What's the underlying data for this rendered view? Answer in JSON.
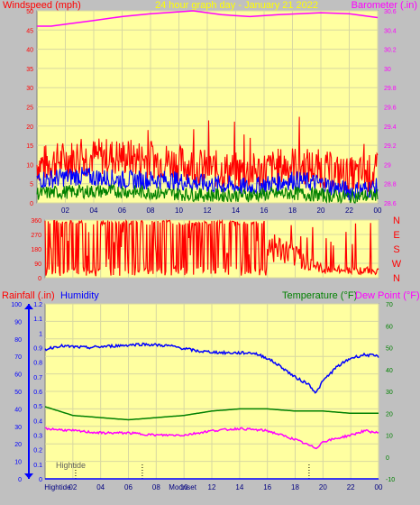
{
  "header": {
    "left_label": "Windspeed (mph)",
    "center_label": "24 hour graph day - January 21 2022",
    "right_label": "Barometer (.in)"
  },
  "colors": {
    "background": "#c0c0c0",
    "plot": "#ffffa0",
    "red": "#ff0000",
    "blue": "#0000ff",
    "green": "#008000",
    "magenta": "#ff00ff",
    "yellow": "#ffff00"
  },
  "chart_data": [
    {
      "type": "line",
      "panel": "wind-barometer",
      "x_ticks": [
        "02",
        "04",
        "06",
        "08",
        "10",
        "12",
        "14",
        "16",
        "18",
        "20",
        "22",
        "00"
      ],
      "y_left_ticks": [
        0,
        5,
        10,
        15,
        20,
        25,
        30,
        35,
        40,
        45,
        50
      ],
      "y_left_range": [
        0,
        50
      ],
      "y_right_ticks": [
        "28.6",
        "28.8",
        "29",
        "29.2",
        "29.4",
        "29.6",
        "29.8",
        "30",
        "30.2",
        "30.4",
        "30.6"
      ],
      "y_right_range": [
        28.6,
        30.6
      ],
      "series": [
        {
          "color": "#ff0000",
          "axis": "left",
          "role": "gust",
          "profile": [
            [
              0,
              10
            ],
            [
              3,
              12
            ],
            [
              6,
              12
            ],
            [
              9,
              11
            ],
            [
              12,
              9
            ],
            [
              15,
              8
            ],
            [
              18,
              10
            ],
            [
              20,
              9
            ],
            [
              22,
              7
            ],
            [
              24,
              8
            ]
          ],
          "noise": 5
        },
        {
          "color": "#0000ff",
          "axis": "left",
          "role": "avg",
          "profile": [
            [
              0,
              6
            ],
            [
              3,
              7
            ],
            [
              6,
              6
            ],
            [
              9,
              6
            ],
            [
              12,
              5
            ],
            [
              15,
              4
            ],
            [
              18,
              6
            ],
            [
              20,
              5
            ],
            [
              22,
              3
            ],
            [
              24,
              4
            ]
          ],
          "noise": 2.5
        },
        {
          "color": "#008000",
          "axis": "left",
          "role": "low",
          "profile": [
            [
              0,
              2.5
            ],
            [
              3,
              3
            ],
            [
              6,
              3
            ],
            [
              9,
              2.5
            ],
            [
              12,
              2
            ],
            [
              15,
              2
            ],
            [
              18,
              2.5
            ],
            [
              20,
              2
            ],
            [
              22,
              1.5
            ],
            [
              24,
              2
            ]
          ],
          "noise": 1.8
        },
        {
          "color": "#ff00ff",
          "axis": "right",
          "role": "barometer",
          "points": [
            [
              0,
              30.44
            ],
            [
              1,
              30.44
            ],
            [
              2,
              30.46
            ],
            [
              4,
              30.5
            ],
            [
              6,
              30.54
            ],
            [
              8,
              30.57
            ],
            [
              10,
              30.59
            ],
            [
              11,
              30.6
            ],
            [
              13,
              30.56
            ],
            [
              15,
              30.54
            ],
            [
              17,
              30.56
            ],
            [
              20,
              30.58
            ],
            [
              22,
              30.57
            ],
            [
              24,
              30.53
            ]
          ]
        }
      ]
    },
    {
      "type": "line",
      "panel": "wind-direction",
      "x_ticks": [
        "02",
        "04",
        "06",
        "08",
        "10",
        "12",
        "14",
        "16",
        "18",
        "20",
        "22",
        "00"
      ],
      "y_left_ticks": [
        0,
        90,
        180,
        270,
        360
      ],
      "y_left_range": [
        0,
        360
      ],
      "y_right_ticks": [
        "N",
        "W",
        "S",
        "E",
        "N"
      ],
      "series": [
        {
          "color": "#ff0000",
          "axis": "left",
          "role": "direction",
          "profile": [
            [
              0,
              250
            ],
            [
              16,
              250
            ],
            [
              20,
              60
            ],
            [
              24,
              50
            ]
          ]
        }
      ]
    },
    {
      "type": "line",
      "panel": "rain-humidity-temp",
      "left_label_rain": "Rainfall (.in)",
      "left_label_humidity": "Humidity",
      "right_label_temp": "Temperature (°F)",
      "right_label_dew": "Dew Point (°F)",
      "x_ticks": [
        "Hightide",
        "02",
        "04",
        "06",
        "08",
        "Moonset",
        "10",
        "12",
        "14",
        "16",
        "18",
        "20",
        "22",
        "00"
      ],
      "y_humidity_ticks": [
        0,
        10,
        20,
        30,
        40,
        50,
        60,
        70,
        80,
        90,
        100
      ],
      "y_humidity_range": [
        0,
        100
      ],
      "y_rain_ticks": [
        "0",
        "0.1",
        "0.2",
        "0.3",
        "0.4",
        "0.5",
        "0.6",
        "0.7",
        "0.8",
        "0.9",
        "1",
        "1.1",
        "1.2"
      ],
      "y_rain_range": [
        0,
        1.2
      ],
      "y_temp_ticks": [
        -10,
        0,
        10,
        20,
        30,
        40,
        50,
        60,
        70
      ],
      "y_temp_range": [
        -10,
        70
      ],
      "annotation": "Hightide",
      "series": [
        {
          "color": "#0000ff",
          "axis": "humidity",
          "role": "humidity",
          "points": [
            [
              0,
              74
            ],
            [
              1,
              76
            ],
            [
              3,
              75
            ],
            [
              5,
              76
            ],
            [
              7,
              77
            ],
            [
              9,
              76
            ],
            [
              11,
              73
            ],
            [
              13,
              72
            ],
            [
              15,
              72
            ],
            [
              16,
              69
            ],
            [
              17,
              64
            ],
            [
              18,
              58
            ],
            [
              19,
              54
            ],
            [
              19.5,
              49
            ],
            [
              20,
              56
            ],
            [
              21,
              64
            ],
            [
              22,
              69
            ],
            [
              23,
              71
            ],
            [
              24,
              70
            ]
          ],
          "noise": 0.8
        },
        {
          "color": "#008000",
          "axis": "temp",
          "role": "temperature",
          "points": [
            [
              0,
              23
            ],
            [
              2,
              19
            ],
            [
              4,
              18
            ],
            [
              6,
              17
            ],
            [
              8,
              18
            ],
            [
              10,
              19
            ],
            [
              12,
              21
            ],
            [
              14,
              22
            ],
            [
              16,
              22
            ],
            [
              18,
              21
            ],
            [
              20,
              21
            ],
            [
              22,
              20
            ],
            [
              24,
              20
            ]
          ]
        },
        {
          "color": "#ff00ff",
          "axis": "temp",
          "role": "dew_point",
          "points": [
            [
              0,
              13
            ],
            [
              2,
              12
            ],
            [
              4,
              11
            ],
            [
              6,
              11
            ],
            [
              8,
              10
            ],
            [
              10,
              10
            ],
            [
              12,
              12
            ],
            [
              14,
              13
            ],
            [
              16,
              12
            ],
            [
              18,
              8
            ],
            [
              19.5,
              4
            ],
            [
              20,
              7
            ],
            [
              22,
              10
            ],
            [
              23,
              12
            ],
            [
              24,
              11
            ]
          ],
          "noise": 0.5
        },
        {
          "color": "#0000ff",
          "axis": "rain",
          "role": "rainfall",
          "points": [
            [
              0,
              0
            ],
            [
              24,
              0
            ]
          ]
        }
      ],
      "event_markers": [
        2.2,
        7,
        19
      ]
    }
  ]
}
